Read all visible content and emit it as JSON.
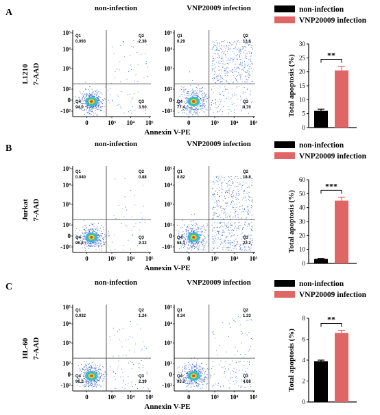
{
  "figure": {
    "x_axis_label": "Annexin V-PE",
    "y_axis_label": "7-AAD",
    "flow_x_ticks": [
      "0",
      "10³",
      "10⁴",
      "10⁵"
    ],
    "flow_y_ticks": [
      "10⁵",
      "10⁴",
      "10³",
      "10²",
      "0",
      "-10²"
    ],
    "gate_names": [
      "Q1",
      "Q2",
      "Q3",
      "Q4"
    ],
    "colors": {
      "non_infection": "#000000",
      "infection": "#e06666"
    }
  },
  "chart_data": [
    {
      "type": "bar",
      "panel_label": "A",
      "cell_line": "L1210",
      "plot_titles": [
        "non-infection",
        "VNP20009 infection"
      ],
      "quadrants": [
        {
          "Q1": "0.093",
          "Q2": "2.38",
          "Q3": "3.50",
          "Q4": "94.0"
        },
        {
          "Q1": "0.29",
          "Q2": "13.6",
          "Q3": "8.70",
          "Q4": "77.4"
        }
      ],
      "categories": [
        "non-infection",
        "VNP20009 infection"
      ],
      "values": [
        6,
        20.5
      ],
      "errors": [
        0.6,
        1.5
      ],
      "ylabel": "Total apoptosis (%)",
      "ylim": [
        0,
        30
      ],
      "yticks": [
        0,
        5,
        10,
        15,
        20,
        25,
        30
      ],
      "significance": "**",
      "legend": [
        "non-infection",
        "VNP20009 infection"
      ]
    },
    {
      "type": "bar",
      "panel_label": "B",
      "cell_line": "Jurkat",
      "plot_titles": [
        "non-infection",
        "VNP20009 infection"
      ],
      "quadrants": [
        {
          "Q1": "0.040",
          "Q2": "0.88",
          "Q3": "2.32",
          "Q4": "96.8"
        },
        {
          "Q1": "0.82",
          "Q2": "18.8",
          "Q3": "22.2",
          "Q4": "58.1"
        }
      ],
      "categories": [
        "non-infection",
        "VNP20009 infection"
      ],
      "values": [
        3.2,
        45
      ],
      "errors": [
        0.4,
        2.5
      ],
      "ylabel": "Total apoptosis (%)",
      "ylim": [
        0,
        60
      ],
      "yticks": [
        0,
        10,
        20,
        30,
        40,
        50,
        60
      ],
      "significance": "***",
      "legend": [
        "non-infection",
        "VNP20009 infection"
      ]
    },
    {
      "type": "bar",
      "panel_label": "C",
      "cell_line": "HL-60",
      "plot_titles": [
        "non-infection",
        "VNP20009 infection"
      ],
      "quadrants": [
        {
          "Q1": "0.032",
          "Q2": "1.24",
          "Q3": "2.39",
          "Q4": "96.2"
        },
        {
          "Q1": "0.34",
          "Q2": "1.33",
          "Q3": "4.68",
          "Q4": "93.7"
        }
      ],
      "categories": [
        "non-infection",
        "VNP20009 infection"
      ],
      "values": [
        3.9,
        6.6
      ],
      "errors": [
        0.1,
        0.25
      ],
      "ylabel": "Total apoptosis (%)",
      "ylim": [
        0,
        8
      ],
      "yticks": [
        0,
        2,
        4,
        6,
        8
      ],
      "significance": "**",
      "legend": [
        "non-infection",
        "VNP20009 infection"
      ]
    }
  ]
}
